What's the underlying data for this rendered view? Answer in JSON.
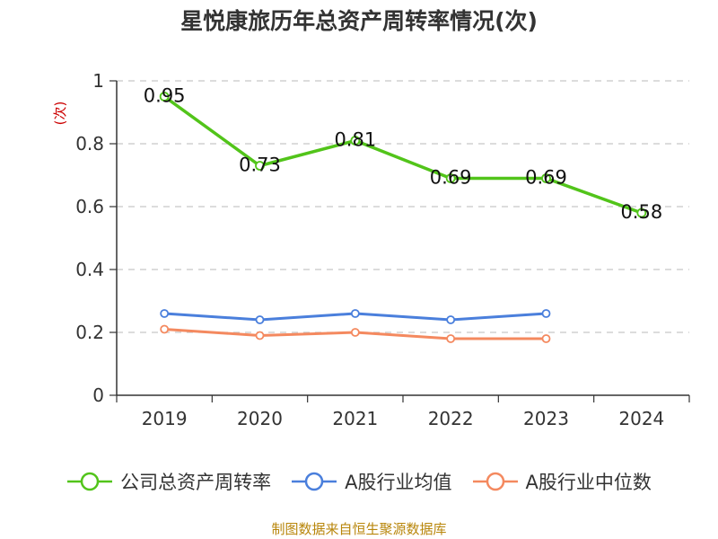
{
  "chart_data": {
    "type": "line",
    "title": "星悦康旅历年总资产周转率情况(次)",
    "ylabel": "(次)",
    "categories": [
      "2019",
      "2020",
      "2021",
      "2022",
      "2023",
      "2024"
    ],
    "ylim": [
      0,
      1
    ],
    "yticks": [
      "0",
      "0.2",
      "0.4",
      "0.6",
      "0.8",
      "1"
    ],
    "grid": true,
    "legend_position": "bottom",
    "series": [
      {
        "name": "公司总资产周转率",
        "color": "#52c41a",
        "values": [
          0.95,
          0.73,
          0.81,
          0.69,
          0.69,
          0.58
        ],
        "data_labels": [
          "0.95",
          "0.73",
          "0.81",
          "0.69",
          "0.69",
          "0.58"
        ]
      },
      {
        "name": "A股行业均值",
        "color": "#4a7fdc",
        "values": [
          0.26,
          0.24,
          0.26,
          0.24,
          0.26,
          null
        ]
      },
      {
        "name": "A股行业中位数",
        "color": "#f4895f",
        "values": [
          0.21,
          0.19,
          0.2,
          0.18,
          0.18,
          null
        ]
      }
    ]
  },
  "source": "制图数据来自恒生聚源数据库"
}
